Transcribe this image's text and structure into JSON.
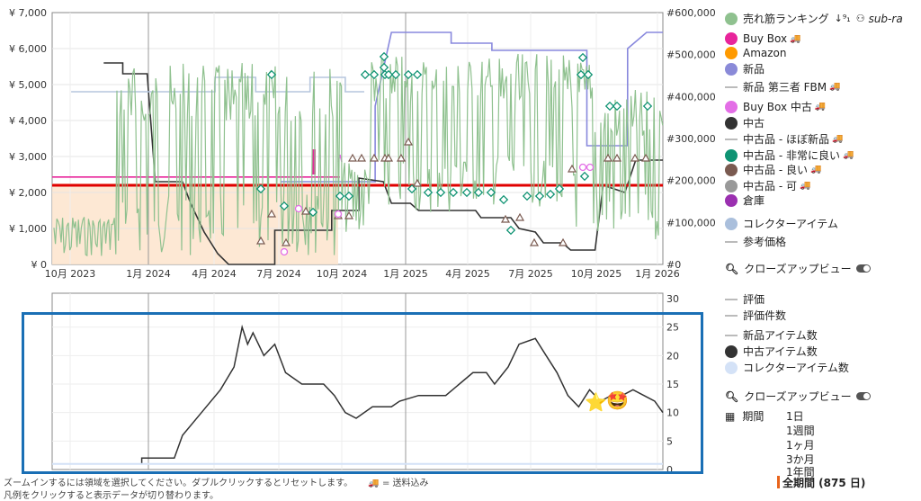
{
  "chart_data": [
    {
      "type": "line",
      "title": "",
      "x_ticks": [
        "10月 2023",
        "1月 2024",
        "4月 2024",
        "7月 2024",
        "10月 2024",
        "1月 2025",
        "4月 2025",
        "7月 2025",
        "10月 2025",
        "1月 2026"
      ],
      "y_left_ticks": [
        "¥ 0",
        "¥ 1,000",
        "¥ 2,000",
        "¥ 3,000",
        "¥ 4,000",
        "¥ 5,000",
        "¥ 6,000",
        "¥ 7,000"
      ],
      "y_left_range": [
        0,
        7000
      ],
      "y_right_ticks": [
        "#0",
        "#100,000",
        "#200,000",
        "#300,000",
        "#400,000",
        "#500,000",
        "#600,000"
      ],
      "y_right_range": [
        0,
        600000
      ],
      "series": [
        {
          "name": "新品",
          "color": "#8888dd",
          "points": [
            [
              0.84,
              2300
            ],
            [
              1.19,
              2300
            ],
            [
              1.19,
              4400
            ],
            [
              1.25,
              6450
            ],
            [
              1.47,
              6450
            ],
            [
              1.47,
              6150
            ],
            [
              1.62,
              6150
            ],
            [
              1.62,
              5950
            ],
            [
              1.97,
              5950
            ],
            [
              1.97,
              3300
            ],
            [
              2.12,
              3300
            ],
            [
              2.12,
              6000
            ],
            [
              2.19,
              6450
            ],
            [
              2.25,
              6450
            ]
          ]
        },
        {
          "name": "中古",
          "color": "#333333",
          "points": [
            [
              0.19,
              5600
            ],
            [
              0.26,
              5600
            ],
            [
              0.26,
              5300
            ],
            [
              0.35,
              5300
            ],
            [
              0.38,
              2300
            ],
            [
              0.48,
              2300
            ],
            [
              0.51,
              1700
            ],
            [
              0.56,
              900
            ],
            [
              0.61,
              300
            ],
            [
              0.65,
              0
            ],
            [
              0.82,
              0
            ],
            [
              0.82,
              950
            ],
            [
              1.03,
              950
            ],
            [
              1.03,
              1500
            ],
            [
              1.13,
              1500
            ],
            [
              1.13,
              2400
            ],
            [
              1.22,
              2300
            ],
            [
              1.25,
              1700
            ],
            [
              1.32,
              1700
            ],
            [
              1.35,
              1500
            ],
            [
              1.56,
              1500
            ],
            [
              1.58,
              1300
            ],
            [
              1.69,
              1300
            ],
            [
              1.72,
              1000
            ],
            [
              1.78,
              900
            ],
            [
              1.81,
              600
            ],
            [
              1.88,
              600
            ],
            [
              1.91,
              400
            ],
            [
              2.0,
              400
            ],
            [
              2.03,
              2200
            ],
            [
              2.11,
              2000
            ],
            [
              2.15,
              2900
            ],
            [
              2.25,
              2900
            ]
          ]
        },
        {
          "name": "Buy Box",
          "color": "#e8259b",
          "points": [
            [
              0.0,
              2430
            ],
            [
              1.06,
              2430
            ]
          ]
        },
        {
          "name": "",
          "color": "#e00000",
          "points": [
            [
              0.0,
              2200
            ],
            [
              2.25,
              2200
            ]
          ]
        },
        {
          "name": "新品 第三者 FBM",
          "color": "#b6c6de",
          "points": [
            [
              0.07,
              4800
            ],
            [
              0.6,
              4800
            ],
            [
              0.6,
              5200
            ],
            [
              0.75,
              5200
            ],
            [
              0.75,
              4800
            ],
            [
              0.95,
              4800
            ],
            [
              0.95,
              5200
            ],
            [
              1.08,
              5200
            ],
            [
              1.08,
              4800
            ],
            [
              1.15,
              4800
            ]
          ]
        }
      ],
      "annotations": [
        "中古品 - 良い markers",
        "中古品 - 非常に良い markers",
        "Buy Box 中古 markers"
      ]
    },
    {
      "type": "line",
      "y_right_ticks": [
        "0",
        "5",
        "10",
        "15",
        "20",
        "25",
        "30"
      ],
      "y_range": [
        0,
        30
      ],
      "series": [
        {
          "name": "中古アイテム数",
          "color": "#333333",
          "points": [
            [
              0.0,
              1
            ],
            [
              0.33,
              1
            ],
            [
              0.33,
              2
            ],
            [
              0.45,
              2
            ],
            [
              0.48,
              6
            ],
            [
              0.55,
              10
            ],
            [
              0.62,
              14
            ],
            [
              0.67,
              18
            ],
            [
              0.7,
              25
            ],
            [
              0.72,
              22
            ],
            [
              0.74,
              24
            ],
            [
              0.78,
              20
            ],
            [
              0.82,
              22
            ],
            [
              0.86,
              17
            ],
            [
              0.92,
              15
            ],
            [
              1.0,
              15
            ],
            [
              1.04,
              13
            ],
            [
              1.08,
              10
            ],
            [
              1.12,
              9
            ],
            [
              1.18,
              11
            ],
            [
              1.25,
              11
            ],
            [
              1.28,
              12
            ],
            [
              1.35,
              13
            ],
            [
              1.45,
              13
            ],
            [
              1.5,
              15
            ],
            [
              1.55,
              17
            ],
            [
              1.6,
              17
            ],
            [
              1.63,
              15
            ],
            [
              1.68,
              18
            ],
            [
              1.72,
              22
            ],
            [
              1.78,
              23
            ],
            [
              1.82,
              20
            ],
            [
              1.86,
              17
            ],
            [
              1.9,
              13
            ],
            [
              1.94,
              11
            ],
            [
              1.98,
              14
            ],
            [
              2.02,
              12
            ],
            [
              2.06,
              13
            ],
            [
              2.1,
              13
            ],
            [
              2.14,
              14
            ],
            [
              2.18,
              13
            ],
            [
              2.22,
              12
            ],
            [
              2.25,
              10
            ]
          ]
        },
        {
          "name": "コレクターアイテム数",
          "color": "#d4e2f7",
          "points": [
            [
              0.0,
              1
            ],
            [
              2.25,
              1
            ]
          ]
        }
      ]
    }
  ],
  "legend": {
    "items": [
      {
        "label": "売れ筋ランキング",
        "color": "#8fc18f",
        "kind": "dot",
        "extra": "sub-ra"
      },
      {
        "label": "Buy Box",
        "color": "#e8259b",
        "kind": "dot",
        "truck": "🚚"
      },
      {
        "label": "Amazon",
        "color": "#ff9a00",
        "kind": "dot"
      },
      {
        "label": "新品",
        "color": "#8a8ad8",
        "kind": "dot"
      },
      {
        "label": "新品 第三者 FBM",
        "color": "#bbbbbb",
        "kind": "dash",
        "truck": "🚚"
      },
      {
        "label": "Buy Box 中古",
        "color": "#e36ee6",
        "kind": "dot",
        "truck": "🚚"
      },
      {
        "label": "中古",
        "color": "#333333",
        "kind": "dot"
      },
      {
        "label": "中古品 - ほぼ新品",
        "color": "#bbbbbb",
        "kind": "dash",
        "truck": "🚚"
      },
      {
        "label": "中古品 - 非常に良い",
        "color": "#0f9373",
        "kind": "dot",
        "truck": "🚚"
      },
      {
        "label": "中古品 - 良い",
        "color": "#7a5a50",
        "kind": "dot",
        "truck": "🚚"
      },
      {
        "label": "中古品 - 可",
        "color": "#999999",
        "kind": "dot",
        "truck": "🚚"
      },
      {
        "label": "倉庫",
        "color": "#9b30b0",
        "kind": "dot"
      },
      {
        "label": "コレクターアイテム",
        "color": "#aabfdc",
        "kind": "dot"
      },
      {
        "label": "参考価格",
        "color": "#bbbbbb",
        "kind": "dash"
      }
    ],
    "closeup": "クローズアップビュー",
    "items2": [
      {
        "label": "評価",
        "kind": "dash"
      },
      {
        "label": "評価件数",
        "kind": "dash"
      },
      {
        "label": "新品アイテム数",
        "kind": "dash"
      },
      {
        "label": "中古アイテム数",
        "kind": "dot",
        "color": "#333333"
      },
      {
        "label": "コレクターアイテム数",
        "kind": "dot",
        "color": "#d4e2f7"
      }
    ],
    "closeup2": "クローズアップビュー",
    "period_label": "期間",
    "periods": [
      "1日",
      "1週間",
      "1ヶ月",
      "3か月",
      "1年間"
    ],
    "period_active": "全期間 (875 日)"
  },
  "footer": {
    "line1": "ズームインするには領域を選択してください。ダブルクリックするとリセットします。",
    "line1b": "= 送料込み",
    "line2": "凡例をクリックすると表示データが切り替わります。"
  }
}
